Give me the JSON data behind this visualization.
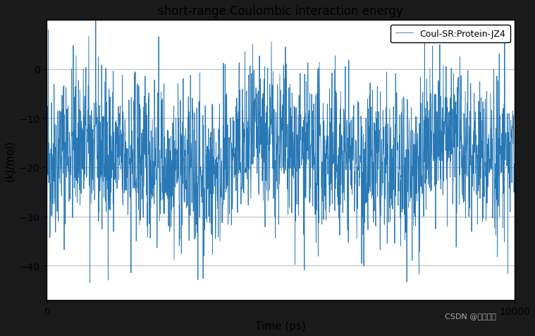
{
  "title": "short-range Coulombic interaction energy",
  "xlabel": "Time (ps)",
  "ylabel": "(kJ/mol)",
  "legend_label": "Coul-SR:Protein-JZ4",
  "xlim": [
    0,
    10000
  ],
  "ylim": [
    -47,
    10
  ],
  "yticks": [
    0,
    -10,
    -20,
    -30,
    -40
  ],
  "xticks": [
    0,
    10000
  ],
  "line_color": "#2878b5",
  "plot_bg_color": "#ffffff",
  "fig_bg_color": "#1a1a1a",
  "grid_color": "#c0c0c0",
  "n_points": 2001,
  "seed": 42,
  "mean": -18.0,
  "std": 8.0,
  "watermark": "CSDN @波波萝宝"
}
